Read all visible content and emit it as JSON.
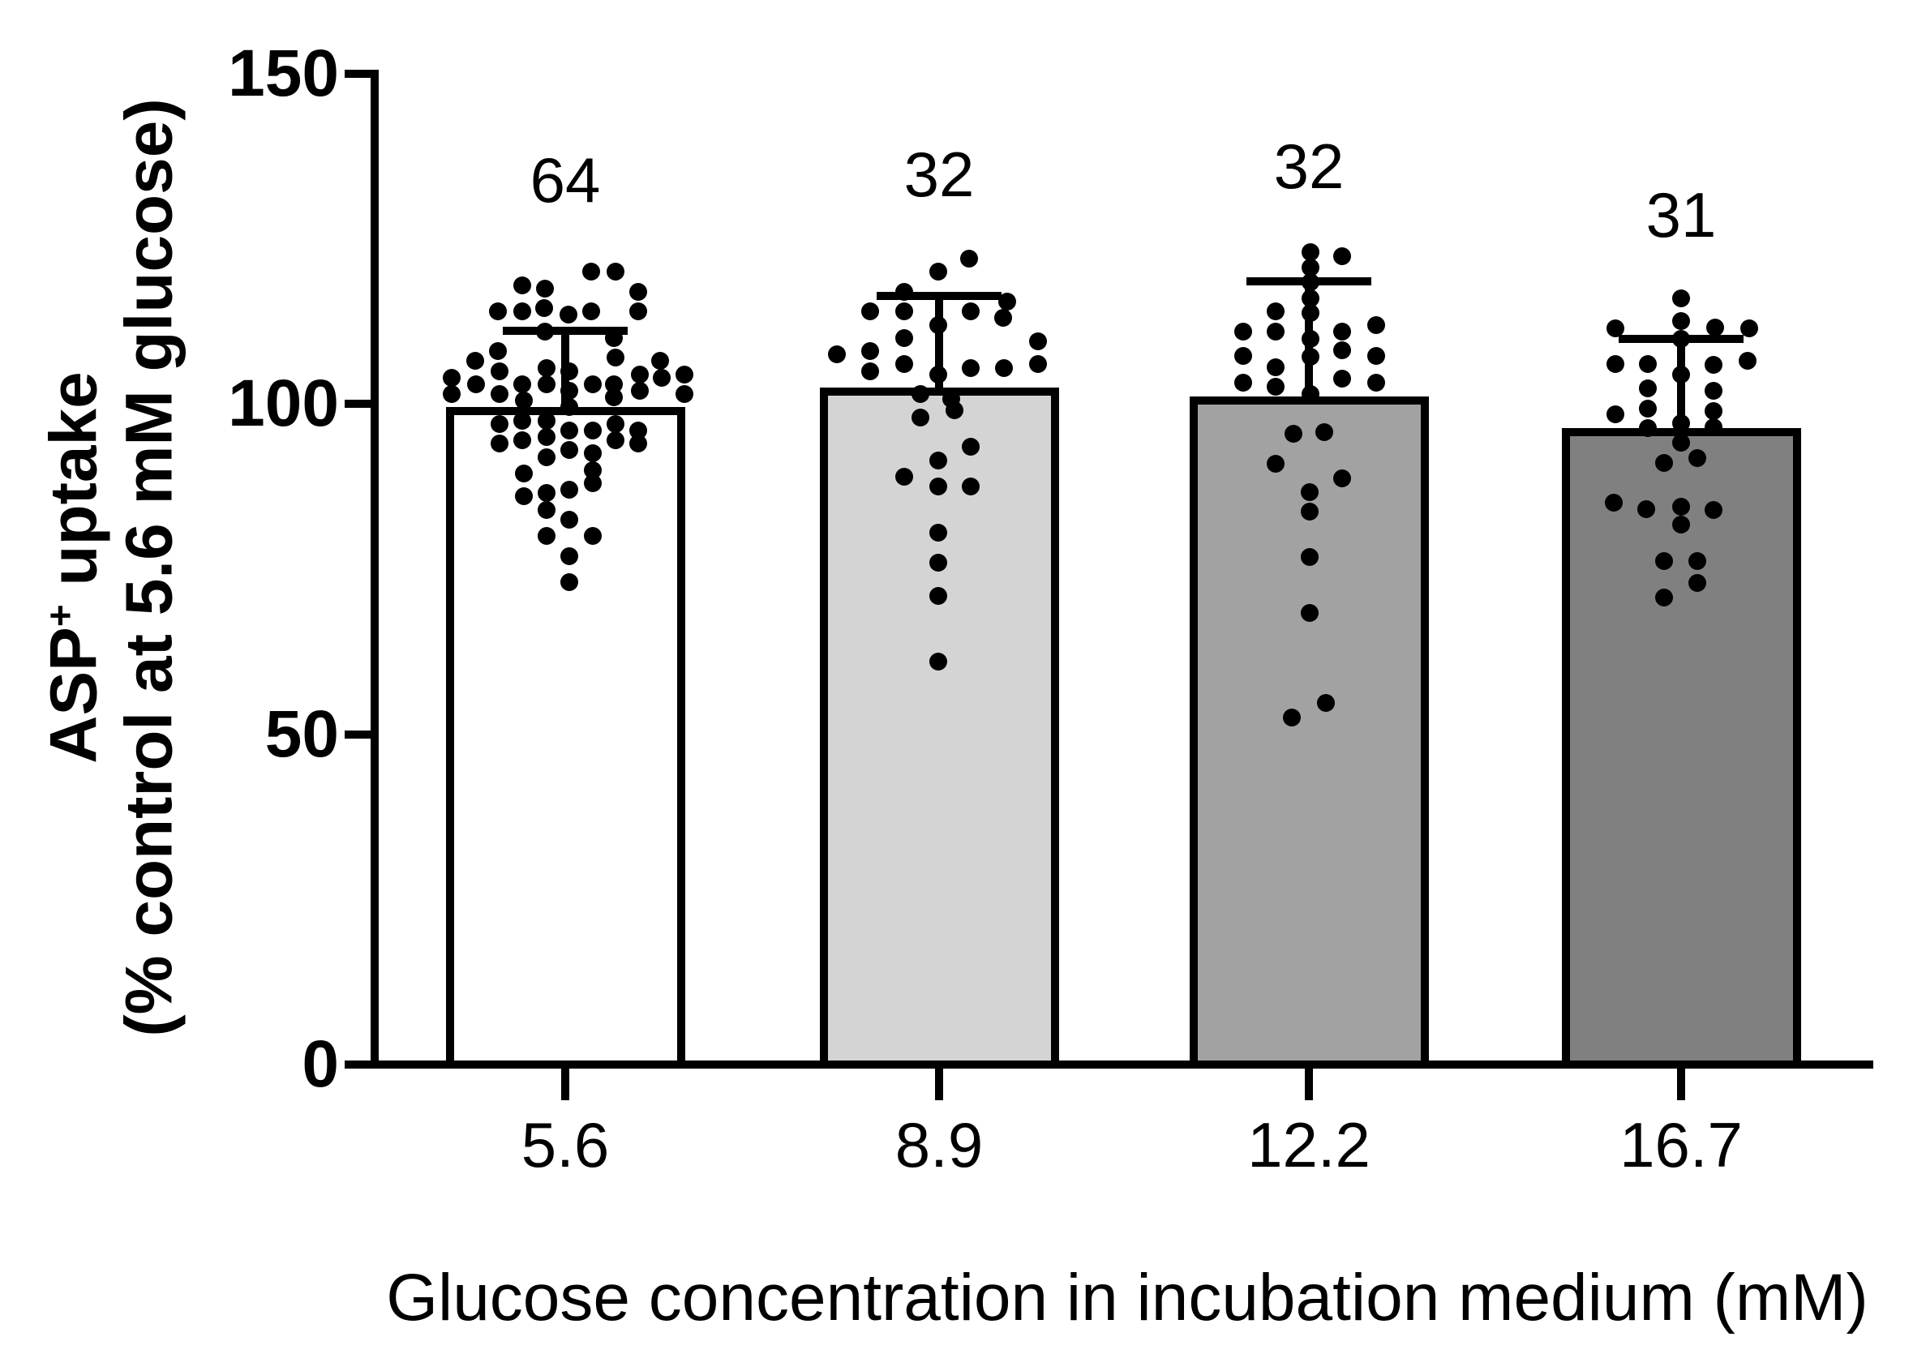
{
  "chart_data": {
    "type": "bar",
    "title": "",
    "xlabel": "Glucose concentration in incubation medium (mM)",
    "ylabel": {
      "line1_main": "ASP",
      "line1_sup": "+",
      "line1_rest": " uptake",
      "line2": "(% control at 5.6 mM glucose)"
    },
    "categories": [
      "5.6",
      "8.9",
      "12.2",
      "16.7"
    ],
    "n_labels": [
      "64",
      "32",
      "32",
      "31"
    ],
    "ylim": [
      0,
      150
    ],
    "yticks": [
      0,
      50,
      100,
      150
    ],
    "grid": false,
    "legend": "none",
    "bar_fills": [
      "#ffffff",
      "#d4d4d4",
      "#a2a2a2",
      "#808080"
    ],
    "bar_stroke": "#000000",
    "dot_color": "#000000",
    "series": [
      {
        "name": "5.6",
        "n": 64,
        "mean": 99.6,
        "sd_upper": 111.1,
        "dots": [
          [
            -53,
            118
          ],
          [
            -25,
            117.5
          ],
          [
            32,
            120
          ],
          [
            62,
            120
          ],
          [
            90,
            117
          ],
          [
            -83,
            114
          ],
          [
            -53,
            114
          ],
          [
            -26,
            114.5
          ],
          [
            4,
            113.5
          ],
          [
            32,
            114
          ],
          [
            90,
            114
          ],
          [
            -25,
            111
          ],
          [
            60,
            110
          ],
          [
            -83,
            108
          ],
          [
            -111,
            106.5
          ],
          [
            62,
            107
          ],
          [
            117,
            106.5
          ],
          [
            -140,
            104
          ],
          [
            -81,
            105
          ],
          [
            -23,
            105.5
          ],
          [
            5,
            105
          ],
          [
            92,
            104.5
          ],
          [
            119,
            104
          ],
          [
            147,
            104.5
          ],
          [
            -140,
            101.5
          ],
          [
            -110,
            103
          ],
          [
            -53,
            103
          ],
          [
            -81,
            101.5
          ],
          [
            -51,
            100.5
          ],
          [
            -23,
            103
          ],
          [
            5,
            102
          ],
          [
            34,
            103
          ],
          [
            60,
            103
          ],
          [
            60,
            101
          ],
          [
            92,
            102
          ],
          [
            147,
            101.5
          ],
          [
            5,
            99.5
          ],
          [
            -81,
            97
          ],
          [
            -53,
            97.5
          ],
          [
            -23,
            97.5
          ],
          [
            5,
            96
          ],
          [
            34,
            96
          ],
          [
            62,
            97
          ],
          [
            90,
            96
          ],
          [
            -81,
            94
          ],
          [
            -53,
            94.5
          ],
          [
            -23,
            95
          ],
          [
            5,
            93
          ],
          [
            34,
            92.5
          ],
          [
            62,
            94.5
          ],
          [
            90,
            94
          ],
          [
            -23,
            92
          ],
          [
            -51,
            89.5
          ],
          [
            34,
            90
          ],
          [
            34,
            88
          ],
          [
            -51,
            86
          ],
          [
            -23,
            86.5
          ],
          [
            5,
            87
          ],
          [
            -23,
            84
          ],
          [
            5,
            82.5
          ],
          [
            -23,
            80
          ],
          [
            34,
            80
          ],
          [
            5,
            77
          ],
          [
            5,
            73
          ]
        ]
      },
      {
        "name": "8.9",
        "n": 32,
        "mean": 102.5,
        "sd_upper": 116.4,
        "dots": [
          [
            37,
            122
          ],
          [
            -1,
            120
          ],
          [
            -43,
            117
          ],
          [
            -85,
            114
          ],
          [
            -43,
            114
          ],
          [
            39,
            114
          ],
          [
            84,
            115.5
          ],
          [
            79,
            113
          ],
          [
            -1,
            112
          ],
          [
            -43,
            110
          ],
          [
            -126,
            107.5
          ],
          [
            -85,
            108
          ],
          [
            122,
            109.5
          ],
          [
            -43,
            106
          ],
          [
            -85,
            105
          ],
          [
            -1,
            104.5
          ],
          [
            39,
            105.5
          ],
          [
            80,
            105.5
          ],
          [
            122,
            106
          ],
          [
            -23,
            101.5
          ],
          [
            15,
            100.8
          ],
          [
            -23,
            98
          ],
          [
            19,
            99
          ],
          [
            39,
            93.5
          ],
          [
            -1,
            91.5
          ],
          [
            -43,
            89
          ],
          [
            -1,
            87.5
          ],
          [
            39,
            87.5
          ],
          [
            -1,
            80.5
          ],
          [
            -1,
            76
          ],
          [
            -1,
            70.9
          ],
          [
            -1,
            61
          ]
        ]
      },
      {
        "name": "12.2",
        "n": 32,
        "mean": 101.2,
        "sd_upper": 118.6,
        "dots": [
          [
            2,
            123
          ],
          [
            2,
            120.7
          ],
          [
            41,
            122.4
          ],
          [
            2,
            118.4
          ],
          [
            2,
            116
          ],
          [
            2,
            113.8
          ],
          [
            -41,
            114
          ],
          [
            -81,
            111
          ],
          [
            -41,
            111
          ],
          [
            41,
            111
          ],
          [
            83,
            112
          ],
          [
            2,
            109.8
          ],
          [
            41,
            108.1
          ],
          [
            83,
            107.3
          ],
          [
            -81,
            107.3
          ],
          [
            2,
            107.1
          ],
          [
            -41,
            105.6
          ],
          [
            41,
            103.8
          ],
          [
            -81,
            103.2
          ],
          [
            83,
            103.2
          ],
          [
            -41,
            102.6
          ],
          [
            2,
            101.5
          ],
          [
            -19,
            95.5
          ],
          [
            19,
            95.7
          ],
          [
            -41,
            91
          ],
          [
            41,
            88.8
          ],
          [
            1,
            86.7
          ],
          [
            1,
            83.7
          ],
          [
            1,
            76.8
          ],
          [
            1,
            68.4
          ],
          [
            21,
            54.8
          ],
          [
            -21,
            52.5
          ]
        ]
      },
      {
        "name": "16.7",
        "n": 31,
        "mean": 96.4,
        "sd_upper": 109.8,
        "dots": [
          [
            0,
            116
          ],
          [
            0,
            112.6
          ],
          [
            -81,
            111.4
          ],
          [
            42,
            111.6
          ],
          [
            84,
            111.4
          ],
          [
            0,
            109.9
          ],
          [
            -81,
            106.1
          ],
          [
            -41,
            106.1
          ],
          [
            40,
            105.9
          ],
          [
            82,
            106.5
          ],
          [
            0,
            104.4
          ],
          [
            -41,
            102.4
          ],
          [
            40,
            102
          ],
          [
            -41,
            99.3
          ],
          [
            40,
            98.9
          ],
          [
            -81,
            98.5
          ],
          [
            -41,
            96.3
          ],
          [
            0,
            97.1
          ],
          [
            40,
            96.5
          ],
          [
            0,
            94.2
          ],
          [
            -21,
            91.1
          ],
          [
            20,
            91.8
          ],
          [
            -83,
            85.1
          ],
          [
            -43,
            84.1
          ],
          [
            0,
            84.5
          ],
          [
            40,
            83.9
          ],
          [
            0,
            81.7
          ],
          [
            -21,
            76.2
          ],
          [
            20,
            76.2
          ],
          [
            20,
            72.9
          ],
          [
            -21,
            70.7
          ]
        ]
      }
    ]
  }
}
